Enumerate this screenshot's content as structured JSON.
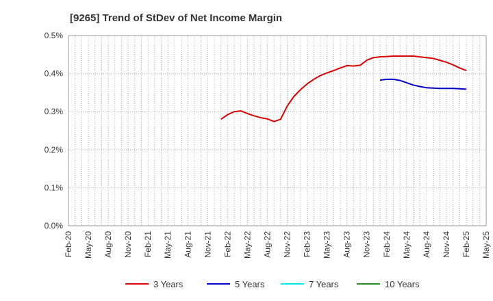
{
  "chart_data": {
    "type": "line",
    "title": "[9265]  Trend of StDev of Net Income Margin",
    "xlabel": "",
    "ylabel": "",
    "x_tick_labels": [
      "Feb-20",
      "May-20",
      "Aug-20",
      "Nov-20",
      "Feb-21",
      "May-21",
      "Aug-21",
      "Nov-21",
      "Feb-22",
      "May-22",
      "Aug-22",
      "Nov-22",
      "Feb-23",
      "May-23",
      "Aug-23",
      "Nov-23",
      "Feb-24",
      "May-24",
      "Aug-24",
      "Nov-24",
      "Feb-25",
      "May-25"
    ],
    "y_tick_labels": [
      "0.0%",
      "0.1%",
      "0.2%",
      "0.3%",
      "0.4%",
      "0.5%"
    ],
    "ylim": [
      0,
      0.5
    ],
    "grid": true,
    "legend_position": "bottom",
    "series": [
      {
        "name": "3 Years",
        "color": "#dd0000",
        "x": [
          "Jan-22",
          "Feb-22",
          "Mar-22",
          "Apr-22",
          "May-22",
          "Jun-22",
          "Jul-22",
          "Aug-22",
          "Sep-22",
          "Oct-22",
          "Nov-22",
          "Dec-22",
          "Jan-23",
          "Feb-23",
          "Mar-23",
          "Apr-23",
          "May-23",
          "Jun-23",
          "Jul-23",
          "Aug-23",
          "Sep-23",
          "Oct-23",
          "Nov-23",
          "Dec-23",
          "Jan-24",
          "Feb-24",
          "Mar-24",
          "Apr-24",
          "May-24",
          "Jun-24",
          "Jul-24",
          "Aug-24",
          "Sep-24",
          "Oct-24",
          "Nov-24",
          "Dec-24",
          "Jan-25",
          "Feb-25"
        ],
        "values": [
          0.28,
          0.292,
          0.3,
          0.302,
          0.295,
          0.289,
          0.284,
          0.281,
          0.274,
          0.28,
          0.315,
          0.34,
          0.358,
          0.373,
          0.385,
          0.395,
          0.402,
          0.408,
          0.415,
          0.421,
          0.42,
          0.422,
          0.435,
          0.442,
          0.444,
          0.445,
          0.446,
          0.446,
          0.446,
          0.446,
          0.444,
          0.442,
          0.44,
          0.435,
          0.43,
          0.423,
          0.415,
          0.408
        ]
      },
      {
        "name": "5 Years",
        "color": "#0000cc",
        "x": [
          "Jan-24",
          "Feb-24",
          "Mar-24",
          "Apr-24",
          "May-24",
          "Jun-24",
          "Jul-24",
          "Aug-24",
          "Sep-24",
          "Oct-24",
          "Nov-24",
          "Dec-24",
          "Jan-25",
          "Feb-25"
        ],
        "values": [
          0.383,
          0.385,
          0.385,
          0.382,
          0.376,
          0.37,
          0.366,
          0.363,
          0.362,
          0.361,
          0.361,
          0.361,
          0.36,
          0.359
        ]
      },
      {
        "name": "7 Years",
        "color": "#00e5ee",
        "x": [],
        "values": []
      },
      {
        "name": "10 Years",
        "color": "#228b22",
        "x": [],
        "values": []
      }
    ]
  }
}
